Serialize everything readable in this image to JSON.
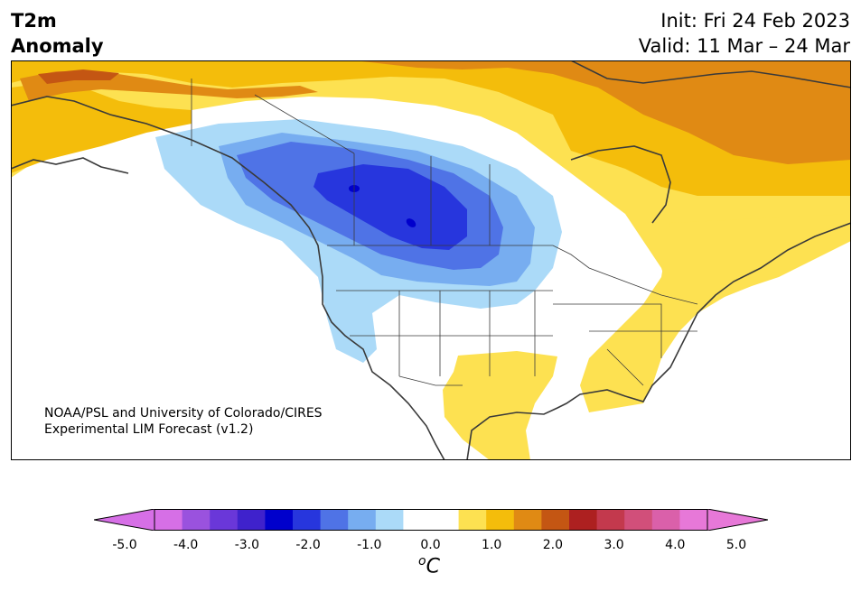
{
  "header": {
    "variable": "T2m",
    "subtitle": "Anomaly",
    "init": "Init: Fri 24 Feb 2023",
    "valid": "Valid: 11 Mar – 24 Mar"
  },
  "credit": {
    "line1": "NOAA/PSL and University of Colorado/CIRES",
    "line2": "Experimental LIM Forecast (v1.2)"
  },
  "colorbar": {
    "unit_base": "C",
    "unit_sup": "o",
    "ticks": [
      "-5.0",
      "-4.0",
      "-3.0",
      "-2.0",
      "-1.0",
      "0.0",
      "1.0",
      "2.0",
      "3.0",
      "4.0",
      "5.0"
    ],
    "colors": [
      "#d66fe6",
      "#9a52de",
      "#6a37d9",
      "#3f22cc",
      "#0000cc",
      "#2736dd",
      "#4f73e6",
      "#77adf0",
      "#abdaf8",
      "#ffffff",
      "#ffffff",
      "#fde151",
      "#f4bd0b",
      "#e08a14",
      "#c45613",
      "#ad2020",
      "#c3394d",
      "#d14f7a",
      "#da60aa",
      "#e778d8"
    ],
    "extend_min_color": "#d66fe6",
    "extend_max_color": "#e778d8"
  },
  "map": {
    "region": "North America",
    "field_colors": {
      "neg3": "#3f22cc",
      "neg2_5": "#0000cc",
      "neg2": "#2736dd",
      "neg1_5": "#4f73e6",
      "neg1": "#77adf0",
      "neg0_5": "#abdaf8",
      "pos0_5": "#fde151",
      "pos1": "#f4bd0b",
      "pos1_5": "#e08a14",
      "pos2": "#c45613"
    }
  }
}
